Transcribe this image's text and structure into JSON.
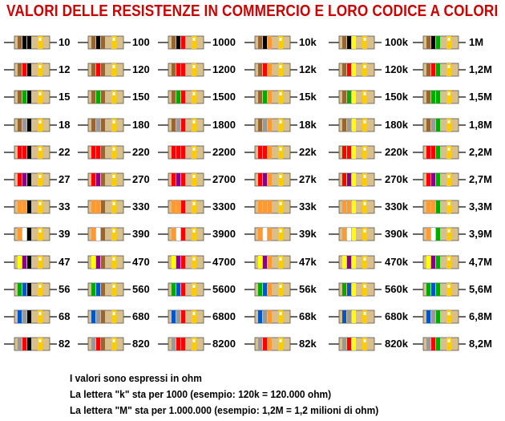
{
  "title": "VALORI DELLE RESISTENZE IN COMMERCIO E LORO CODICE A COLORI",
  "band_colors": {
    "black": "#000000",
    "brown": "#996633",
    "red": "#ff0000",
    "orange": "#ff9933",
    "yellow": "#ffff00",
    "green": "#00aa00",
    "blue": "#0055cc",
    "violet": "#880088",
    "grey": "#999999",
    "white": "#ffffff",
    "gold": "#ffcc00"
  },
  "body_color": "#d8c08c",
  "lead_color": "#000000",
  "columns": [
    [
      "10",
      "12",
      "15",
      "18",
      "22",
      "27",
      "33",
      "39",
      "47",
      "56",
      "68",
      "82"
    ],
    [
      "100",
      "120",
      "150",
      "180",
      "220",
      "270",
      "330",
      "390",
      "470",
      "560",
      "680",
      "820"
    ],
    [
      "1000",
      "1200",
      "1500",
      "1800",
      "2200",
      "2700",
      "3300",
      "3900",
      "4700",
      "5600",
      "6800",
      "8200"
    ],
    [
      "10k",
      "12k",
      "15k",
      "18k",
      "22k",
      "27k",
      "33k",
      "39k",
      "47k",
      "56k",
      "68k",
      "82k"
    ],
    [
      "100k",
      "120k",
      "150k",
      "180k",
      "220k",
      "270k",
      "330k",
      "390k",
      "470k",
      "560k",
      "680k",
      "820k"
    ],
    [
      "1M",
      "1,2M",
      "1,5M",
      "1,8M",
      "2,2M",
      "2,7M",
      "3,3M",
      "3,9M",
      "4,7M",
      "5,6M",
      "6,8M",
      "8,2M"
    ]
  ],
  "notes": [
    "I valori sono espressi in ohm",
    "La lettera \"k\" sta per 1000 (esempio: 120k = 120.000 ohm)",
    "La lettera \"M\" sta per 1.000.000 (esempio: 1,2M = 1,2 milioni di ohm)"
  ]
}
